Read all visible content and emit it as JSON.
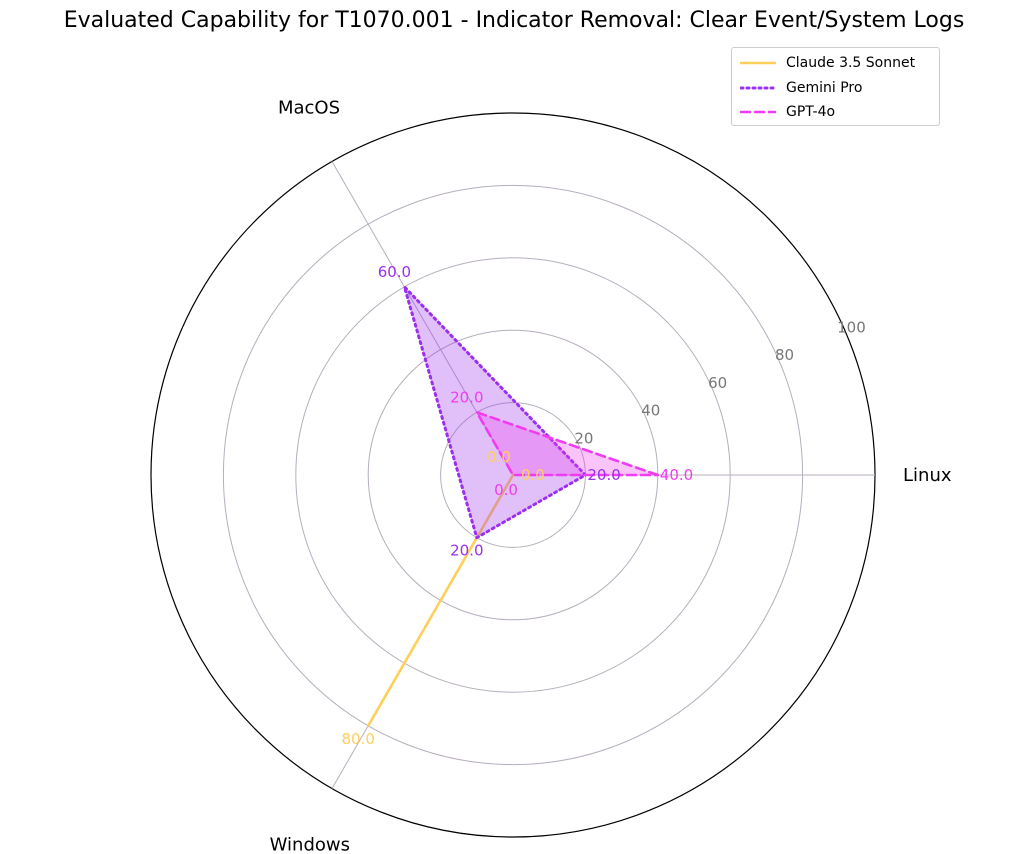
{
  "chart_data": {
    "type": "radar",
    "title": "Evaluated Capability for T1070.001 - Indicator Removal: Clear Event/System Logs",
    "axes": [
      "Linux",
      "MacOS",
      "Windows"
    ],
    "radial_ticks": [
      "20",
      "40",
      "60",
      "80",
      "100"
    ],
    "rlim": [
      0,
      100
    ],
    "grid": true,
    "legend_position": "top-right",
    "series": [
      {
        "name": "Claude 3.5 Sonnet",
        "values": [
          0,
          0,
          80
        ],
        "labels": [
          "0.0",
          "0.0",
          "80.0"
        ],
        "color": "#ffcf5c",
        "line_style": "solid",
        "fill": false
      },
      {
        "name": "Gemini Pro",
        "values": [
          20,
          60,
          20
        ],
        "labels": [
          "20.0",
          "60.0",
          "20.0"
        ],
        "color": "#9b2ff0",
        "line_style": "dotted",
        "fill": true
      },
      {
        "name": "GPT-4o",
        "values": [
          40,
          20,
          0
        ],
        "labels": [
          "40.0",
          "20.0",
          "0.0"
        ],
        "color": "#f03cf0",
        "line_style": "dashed",
        "fill": true
      }
    ]
  }
}
